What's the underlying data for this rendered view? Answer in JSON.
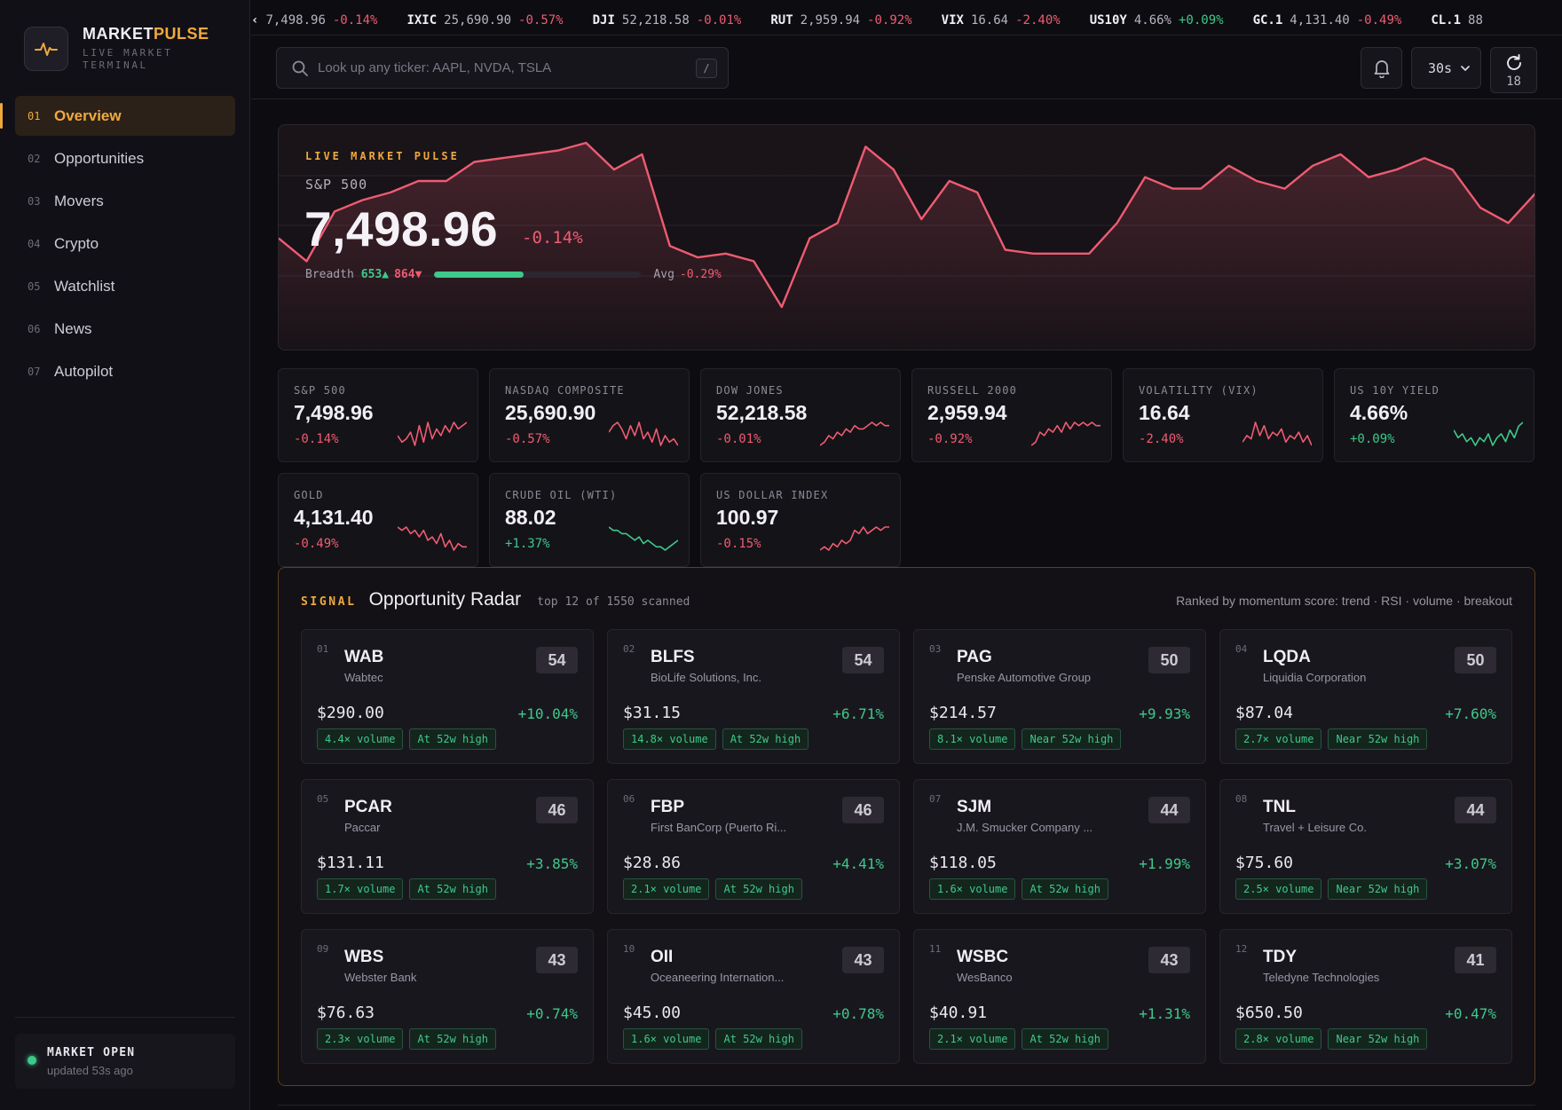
{
  "brand": {
    "name_a": "MARKET",
    "name_b": "PULSE",
    "subtitle": "LIVE MARKET TERMINAL",
    "logo_icon": "pulse-icon"
  },
  "nav": [
    {
      "num": "01",
      "label": "Overview",
      "active": true
    },
    {
      "num": "02",
      "label": "Opportunities"
    },
    {
      "num": "03",
      "label": "Movers"
    },
    {
      "num": "04",
      "label": "Crypto"
    },
    {
      "num": "05",
      "label": "Watchlist"
    },
    {
      "num": "06",
      "label": "News"
    },
    {
      "num": "07",
      "label": "Autopilot"
    }
  ],
  "status": {
    "title": "MARKET OPEN",
    "updated": "updated 53s ago"
  },
  "ticker": [
    {
      "sym": "‹",
      "val": "7,498.96",
      "chg": "-0.14%",
      "dir": "neg"
    },
    {
      "sym": "IXIC",
      "val": "25,690.90",
      "chg": "-0.57%",
      "dir": "neg"
    },
    {
      "sym": "DJI",
      "val": "52,218.58",
      "chg": "-0.01%",
      "dir": "neg"
    },
    {
      "sym": "RUT",
      "val": "2,959.94",
      "chg": "-0.92%",
      "dir": "neg"
    },
    {
      "sym": "VIX",
      "val": "16.64",
      "chg": "-2.40%",
      "dir": "neg"
    },
    {
      "sym": "US10Y",
      "val": "4.66%",
      "chg": "+0.09%",
      "dir": "pos"
    },
    {
      "sym": "GC.1",
      "val": "4,131.40",
      "chg": "-0.49%",
      "dir": "neg"
    },
    {
      "sym": "CL.1",
      "val": "88",
      "chg": "",
      "dir": "pos"
    }
  ],
  "search": {
    "placeholder": "Look up any ticker: AAPL, NVDA, TSLA",
    "shortcut": "/",
    "icon": "search-icon"
  },
  "toolbar": {
    "interval": "30s",
    "refresh_count": "18",
    "bell_icon": "bell-icon",
    "refresh_icon": "refresh-icon"
  },
  "hero": {
    "eyebrow": "LIVE MARKET PULSE",
    "name": "S&P 500",
    "value": "7,498.96",
    "change": "-0.14%",
    "breadth_label": "Breadth",
    "adv": "653▲",
    "dec": "864▼",
    "breadth_fraction": 0.43,
    "avg_label": "Avg",
    "avg": "-0.29%",
    "line_color": "#ee5c72",
    "series": [
      48,
      42,
      55,
      58,
      60,
      63,
      63,
      68,
      69,
      70,
      71,
      73,
      66,
      70,
      46,
      43,
      44,
      42,
      30,
      48,
      52,
      72,
      66,
      53,
      63,
      60,
      45,
      44,
      44,
      44,
      52,
      64,
      61,
      61,
      67,
      63,
      61,
      67,
      70,
      64,
      66,
      69,
      66,
      56,
      52,
      60
    ]
  },
  "cards": [
    {
      "name": "S&P 500",
      "value": "7,498.96",
      "change": "-0.14%",
      "dir": "neg",
      "spark": [
        5,
        3,
        4,
        6,
        2,
        8,
        3,
        9,
        4,
        7,
        5,
        8,
        6,
        9,
        7,
        8,
        9
      ]
    },
    {
      "name": "NASDAQ COMPOSITE",
      "value": "25,690.90",
      "change": "-0.57%",
      "dir": "neg",
      "spark": [
        6,
        8,
        9,
        7,
        4,
        8,
        5,
        9,
        4,
        6,
        3,
        7,
        2,
        5,
        3,
        4,
        2
      ]
    },
    {
      "name": "DOW JONES",
      "value": "52,218.58",
      "change": "-0.01%",
      "dir": "neg",
      "spark": [
        2,
        3,
        5,
        4,
        6,
        5,
        7,
        6,
        8,
        7,
        7,
        8,
        9,
        8,
        9,
        8,
        8
      ]
    },
    {
      "name": "RUSSELL 2000",
      "value": "2,959.94",
      "change": "-0.92%",
      "dir": "neg",
      "spark": [
        2,
        3,
        6,
        5,
        7,
        6,
        8,
        6,
        9,
        7,
        9,
        8,
        9,
        8,
        9,
        8,
        8
      ]
    },
    {
      "name": "VOLATILITY (VIX)",
      "value": "16.64",
      "change": "-2.40%",
      "dir": "neg",
      "spark": [
        3,
        5,
        4,
        9,
        5,
        8,
        4,
        6,
        5,
        7,
        3,
        5,
        4,
        6,
        3,
        5,
        2
      ]
    },
    {
      "name": "US 10Y YIELD",
      "value": "4.66%",
      "change": "+0.09%",
      "dir": "pos",
      "spark": [
        7,
        5,
        6,
        4,
        5,
        3,
        5,
        4,
        6,
        3,
        5,
        6,
        4,
        7,
        5,
        8,
        9
      ]
    },
    {
      "name": "GOLD",
      "value": "4,131.40",
      "change": "-0.49%",
      "dir": "neg",
      "spark": [
        9,
        8,
        9,
        7,
        8,
        6,
        8,
        5,
        6,
        4,
        7,
        3,
        5,
        2,
        4,
        3,
        3
      ]
    },
    {
      "name": "CRUDE OIL (WTI)",
      "value": "88.02",
      "change": "+1.37%",
      "dir": "pos",
      "spark": [
        9,
        8,
        8,
        7,
        7,
        6,
        5,
        6,
        4,
        5,
        4,
        3,
        3,
        2,
        3,
        4,
        5
      ]
    },
    {
      "name": "US DOLLAR INDEX",
      "value": "100.97",
      "change": "-0.15%",
      "dir": "neg",
      "spark": [
        2,
        3,
        2,
        4,
        3,
        5,
        4,
        5,
        8,
        7,
        9,
        7,
        8,
        9,
        8,
        9,
        9
      ]
    }
  ],
  "radar": {
    "eyebrow": "SIGNAL",
    "title": "Opportunity Radar",
    "scanned": "top 12 of 1550 scanned",
    "note": "Ranked by momentum score: trend · RSI · volume · breakout",
    "items": [
      {
        "rank": "01",
        "ticker": "WAB",
        "name": "Wabtec",
        "score": "54",
        "price": "$290.00",
        "change": "+10.04%",
        "tags": [
          "4.4× volume",
          "At 52w high"
        ]
      },
      {
        "rank": "02",
        "ticker": "BLFS",
        "name": "BioLife Solutions, Inc.",
        "score": "54",
        "price": "$31.15",
        "change": "+6.71%",
        "tags": [
          "14.8× volume",
          "At 52w high"
        ]
      },
      {
        "rank": "03",
        "ticker": "PAG",
        "name": "Penske Automotive Group",
        "score": "50",
        "price": "$214.57",
        "change": "+9.93%",
        "tags": [
          "8.1× volume",
          "Near 52w high"
        ]
      },
      {
        "rank": "04",
        "ticker": "LQDA",
        "name": "Liquidia Corporation",
        "score": "50",
        "price": "$87.04",
        "change": "+7.60%",
        "tags": [
          "2.7× volume",
          "Near 52w high"
        ]
      },
      {
        "rank": "05",
        "ticker": "PCAR",
        "name": "Paccar",
        "score": "46",
        "price": "$131.11",
        "change": "+3.85%",
        "tags": [
          "1.7× volume",
          "At 52w high"
        ]
      },
      {
        "rank": "06",
        "ticker": "FBP",
        "name": "First BanCorp (Puerto Ri...",
        "score": "46",
        "price": "$28.86",
        "change": "+4.41%",
        "tags": [
          "2.1× volume",
          "At 52w high"
        ]
      },
      {
        "rank": "07",
        "ticker": "SJM",
        "name": "J.M. Smucker Company ...",
        "score": "44",
        "price": "$118.05",
        "change": "+1.99%",
        "tags": [
          "1.6× volume",
          "At 52w high"
        ]
      },
      {
        "rank": "08",
        "ticker": "TNL",
        "name": "Travel + Leisure Co.",
        "score": "44",
        "price": "$75.60",
        "change": "+3.07%",
        "tags": [
          "2.5× volume",
          "Near 52w high"
        ]
      },
      {
        "rank": "09",
        "ticker": "WBS",
        "name": "Webster Bank",
        "score": "43",
        "price": "$76.63",
        "change": "+0.74%",
        "tags": [
          "2.3× volume",
          "At 52w high"
        ]
      },
      {
        "rank": "10",
        "ticker": "OII",
        "name": "Oceaneering Internation...",
        "score": "43",
        "price": "$45.00",
        "change": "+0.78%",
        "tags": [
          "1.6× volume",
          "At 52w high"
        ]
      },
      {
        "rank": "11",
        "ticker": "WSBC",
        "name": "WesBanco",
        "score": "43",
        "price": "$40.91",
        "change": "+1.31%",
        "tags": [
          "2.1× volume",
          "At 52w high"
        ]
      },
      {
        "rank": "12",
        "ticker": "TDY",
        "name": "Teledyne Technologies",
        "score": "41",
        "price": "$650.50",
        "change": "+0.47%",
        "tags": [
          "2.8× volume",
          "Near 52w high"
        ]
      }
    ]
  },
  "colors": {
    "accent": "#f0a93d",
    "positive": "#3ec98a",
    "negative": "#ee5c72"
  }
}
